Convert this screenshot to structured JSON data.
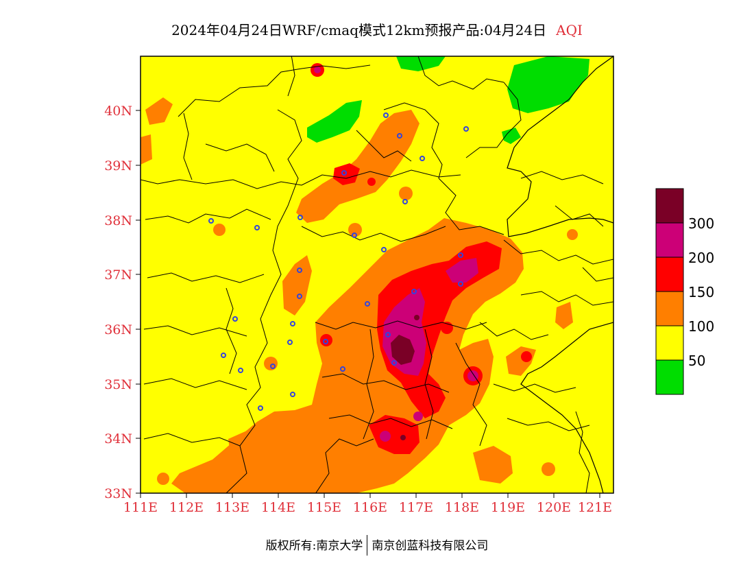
{
  "title": {
    "main": "2024年04月24日WRF/cmaq模式12km预报产品:04月24日",
    "variable": "AQI"
  },
  "credit": {
    "left": "版权所有:南京大学",
    "right": "南京创蓝科技有限公司"
  },
  "axes": {
    "lat_labels": [
      "40N",
      "39N",
      "38N",
      "37N",
      "36N",
      "35N",
      "34N",
      "33N"
    ],
    "lon_labels": [
      "111E",
      "112E",
      "113E",
      "114E",
      "115E",
      "116E",
      "117E",
      "118E",
      "119E",
      "120E",
      "121E"
    ],
    "lat_range": [
      33,
      41
    ],
    "lon_range": [
      111,
      121.3
    ],
    "label_color": "#e0303a"
  },
  "legend": {
    "levels": [
      {
        "label": "300",
        "color": "#7a0026"
      },
      {
        "label": "200",
        "color": "#cc0077"
      },
      {
        "label": "150",
        "color": "#ff0000"
      },
      {
        "label": "100",
        "color": "#ff7f00"
      },
      {
        "label": "50",
        "color": "#ffff00"
      },
      {
        "label": "",
        "color": "#00dd00"
      }
    ]
  },
  "colors": {
    "good": "#00dd00",
    "moderate": "#ffff00",
    "sensitive": "#ff7f00",
    "unhealthy": "#ff0000",
    "very_unhealthy": "#cc0077",
    "hazardous": "#7a0026",
    "station": "#3344dd"
  }
}
